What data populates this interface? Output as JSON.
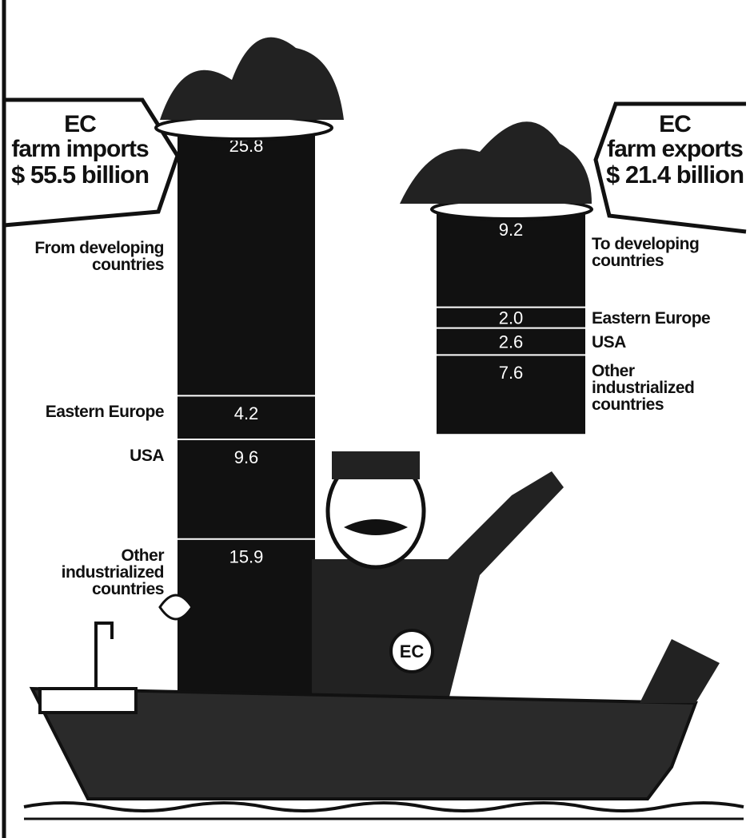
{
  "chart_data": {
    "type": "stacked_column_pair",
    "columns": [
      {
        "title": [
          "EC",
          "farm imports"
        ],
        "total": "$ 55.5 billion",
        "categories": [
          "From developing countries",
          "Eastern Europe",
          "USA",
          "Other industrialized countries"
        ],
        "values": [
          25.8,
          4.2,
          9.6,
          15.9
        ]
      },
      {
        "title": [
          "EC",
          "farm exports"
        ],
        "total": "$ 21.4 billion",
        "categories": [
          "To developing countries",
          "Eastern Europe",
          "USA",
          "Other industrialized countries"
        ],
        "values": [
          9.2,
          2.0,
          2.6,
          7.6
        ],
        "value_labels": [
          "9.2",
          "2.0",
          "2.6",
          "7.6"
        ]
      }
    ],
    "color": "#111111",
    "badge": "EC"
  }
}
